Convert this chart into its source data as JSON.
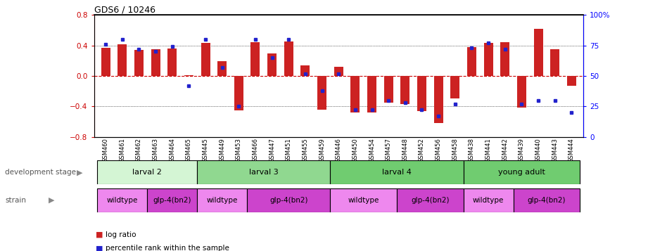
{
  "title": "GDS6 / 10246",
  "samples": [
    "GSM460",
    "GSM461",
    "GSM462",
    "GSM463",
    "GSM464",
    "GSM465",
    "GSM445",
    "GSM449",
    "GSM453",
    "GSM466",
    "GSM447",
    "GSM451",
    "GSM455",
    "GSM459",
    "GSM446",
    "GSM450",
    "GSM454",
    "GSM457",
    "GSM448",
    "GSM452",
    "GSM456",
    "GSM458",
    "GSM438",
    "GSM441",
    "GSM442",
    "GSM439",
    "GSM440",
    "GSM443",
    "GSM444"
  ],
  "log_ratio": [
    0.37,
    0.42,
    0.34,
    0.35,
    0.36,
    0.01,
    0.43,
    0.19,
    -0.45,
    0.44,
    0.3,
    0.45,
    0.14,
    -0.44,
    0.12,
    -0.48,
    -0.48,
    -0.35,
    -0.37,
    -0.46,
    -0.62,
    -0.3,
    0.38,
    0.43,
    0.44,
    -0.42,
    0.62,
    0.35,
    -0.13
  ],
  "percentile": [
    76,
    80,
    72,
    70,
    74,
    42,
    80,
    57,
    25,
    80,
    65,
    80,
    52,
    38,
    52,
    22,
    22,
    30,
    28,
    22,
    17,
    27,
    73,
    77,
    72,
    27,
    30,
    30,
    20
  ],
  "dev_stages": [
    {
      "label": "larval 2",
      "start": 0,
      "end": 6,
      "color": "#d4f5d4"
    },
    {
      "label": "larval 3",
      "start": 6,
      "end": 14,
      "color": "#90d890"
    },
    {
      "label": "larval 4",
      "start": 14,
      "end": 22,
      "color": "#70cc70"
    },
    {
      "label": "young adult",
      "start": 22,
      "end": 29,
      "color": "#70cc70"
    }
  ],
  "strains": [
    {
      "label": "wildtype",
      "start": 0,
      "end": 3,
      "color": "#ee88ee"
    },
    {
      "label": "glp-4(bn2)",
      "start": 3,
      "end": 6,
      "color": "#cc44cc"
    },
    {
      "label": "wildtype",
      "start": 6,
      "end": 9,
      "color": "#ee88ee"
    },
    {
      "label": "glp-4(bn2)",
      "start": 9,
      "end": 14,
      "color": "#cc44cc"
    },
    {
      "label": "wildtype",
      "start": 14,
      "end": 18,
      "color": "#ee88ee"
    },
    {
      "label": "glp-4(bn2)",
      "start": 18,
      "end": 22,
      "color": "#cc44cc"
    },
    {
      "label": "wildtype",
      "start": 22,
      "end": 25,
      "color": "#ee88ee"
    },
    {
      "label": "glp-4(bn2)",
      "start": 25,
      "end": 29,
      "color": "#cc44cc"
    }
  ],
  "ylim": [
    -0.8,
    0.8
  ],
  "y2lim": [
    0,
    100
  ],
  "bar_color": "#cc2222",
  "dot_color": "#2222cc",
  "zero_line_color": "#cc0000",
  "bar_width": 0.55
}
